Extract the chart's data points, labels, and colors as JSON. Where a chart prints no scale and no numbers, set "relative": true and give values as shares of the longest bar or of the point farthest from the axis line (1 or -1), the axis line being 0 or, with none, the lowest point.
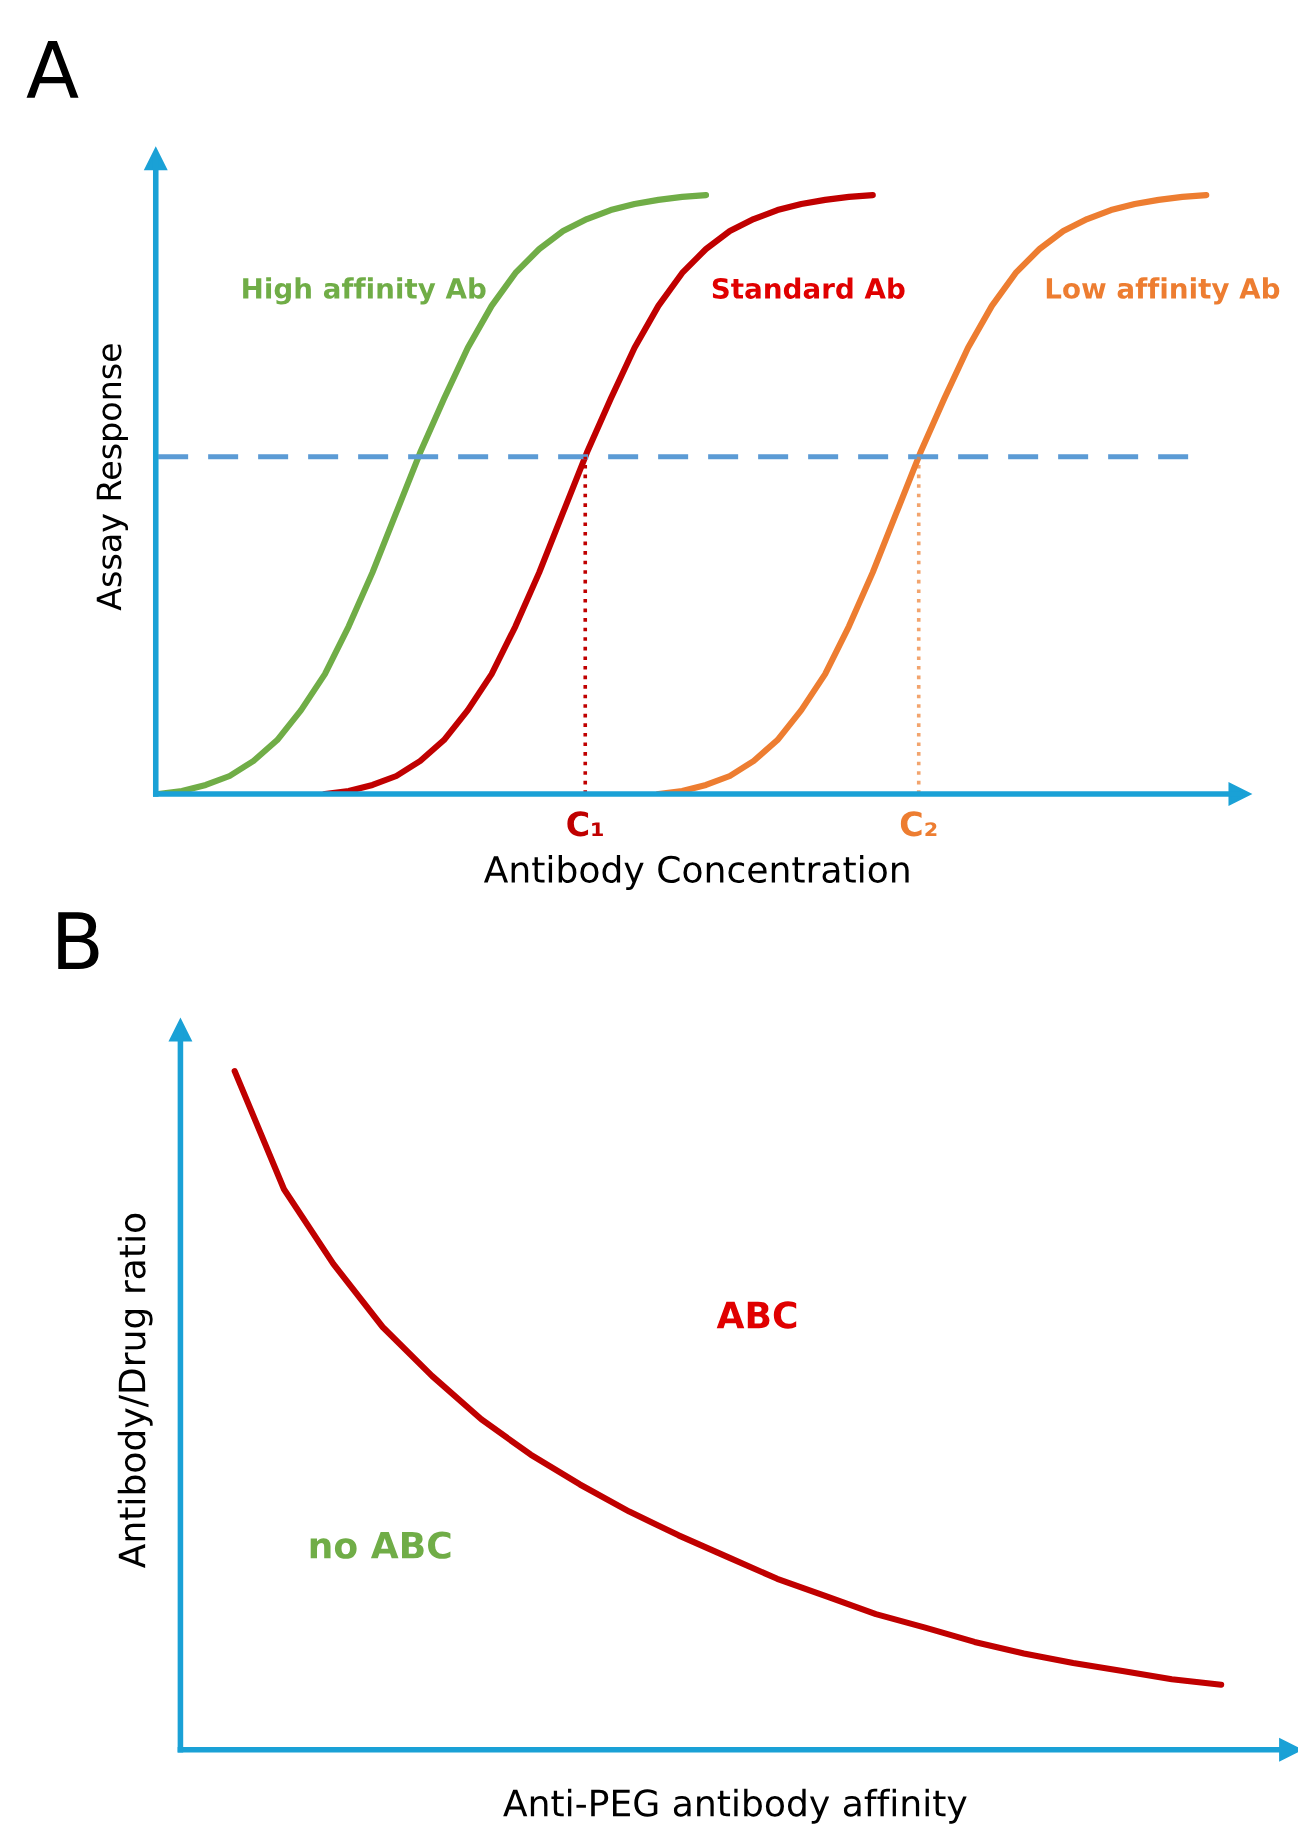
{
  "chart_data": [
    {
      "type": "line",
      "title": "A",
      "xlabel": "Antibody Concentration",
      "ylabel": "Assay Response",
      "relative": true,
      "categories": [
        null,
        null,
        null,
        null,
        null,
        null,
        null,
        null,
        null,
        null,
        null,
        null,
        null,
        null,
        null,
        null,
        null,
        null,
        null,
        null,
        null,
        null,
        null,
        null,
        null,
        null,
        null,
        null,
        null,
        null,
        null,
        null,
        null,
        null,
        null,
        null,
        null,
        null,
        null,
        null,
        null,
        null,
        null,
        null,
        null,
        null
      ],
      "series": [
        {
          "name": "High affinity Ab",
          "color": "#70ad47",
          "values": [
            0,
            0.005,
            0.015,
            0.03,
            0.055,
            0.09,
            0.14,
            0.2,
            0.28,
            0.37,
            0.47,
            0.57,
            0.66,
            0.745,
            0.815,
            0.87,
            0.91,
            0.94,
            0.96,
            0.975,
            0.985,
            0.992,
            0.997,
            1,
            null,
            null,
            null,
            null,
            null,
            null,
            null,
            null,
            null,
            null,
            null,
            null,
            null,
            null,
            null,
            null,
            null,
            null,
            null,
            null,
            null,
            null
          ]
        },
        {
          "name": "Standard Ab",
          "color": "#c00000",
          "values": [
            null,
            null,
            null,
            null,
            null,
            null,
            null,
            0,
            0.005,
            0.015,
            0.03,
            0.055,
            0.09,
            0.14,
            0.2,
            0.28,
            0.37,
            0.47,
            0.57,
            0.66,
            0.745,
            0.815,
            0.87,
            0.91,
            0.94,
            0.96,
            0.975,
            0.985,
            0.992,
            0.997,
            1,
            null,
            null,
            null,
            null,
            null,
            null,
            null,
            null,
            null,
            null,
            null,
            null,
            null,
            null,
            null
          ]
        },
        {
          "name": "Low affinity Ab",
          "color": "#ed7d31",
          "values": [
            null,
            null,
            null,
            null,
            null,
            null,
            null,
            null,
            null,
            null,
            null,
            null,
            null,
            null,
            null,
            null,
            null,
            null,
            null,
            null,
            null,
            0,
            0.005,
            0.015,
            0.03,
            0.055,
            0.09,
            0.14,
            0.2,
            0.28,
            0.37,
            0.47,
            0.57,
            0.66,
            0.745,
            0.815,
            0.87,
            0.91,
            0.94,
            0.96,
            0.975,
            0.985,
            0.992,
            0.997,
            1,
            null
          ]
        }
      ],
      "ref_lines": [
        {
          "axis": "y",
          "value": 0.563,
          "color": "#5b9bd5",
          "line_style": "dashed"
        }
      ],
      "annotations": [
        "C₁",
        "C₂"
      ]
    },
    {
      "type": "line",
      "title": "B",
      "xlabel": "Anti-PEG antibody affinity",
      "ylabel": "Antibody/Drug ratio",
      "relative": true,
      "categories": [
        null,
        null,
        null,
        null,
        null,
        null,
        null,
        null,
        null,
        null,
        null,
        null,
        null,
        null,
        null,
        null,
        null,
        null,
        null,
        null,
        null,
        null,
        null
      ],
      "series": [
        {
          "color": "#c00000",
          "values": [
            null,
            1.0,
            0.826,
            0.716,
            0.623,
            0.551,
            0.487,
            0.435,
            0.391,
            0.351,
            0.316,
            0.284,
            0.252,
            0.226,
            0.2,
            0.18,
            0.159,
            0.142,
            0.128,
            0.116,
            0.104,
            0.096,
            null
          ]
        }
      ],
      "annotations": [
        "ABC",
        "no ABC"
      ]
    }
  ]
}
